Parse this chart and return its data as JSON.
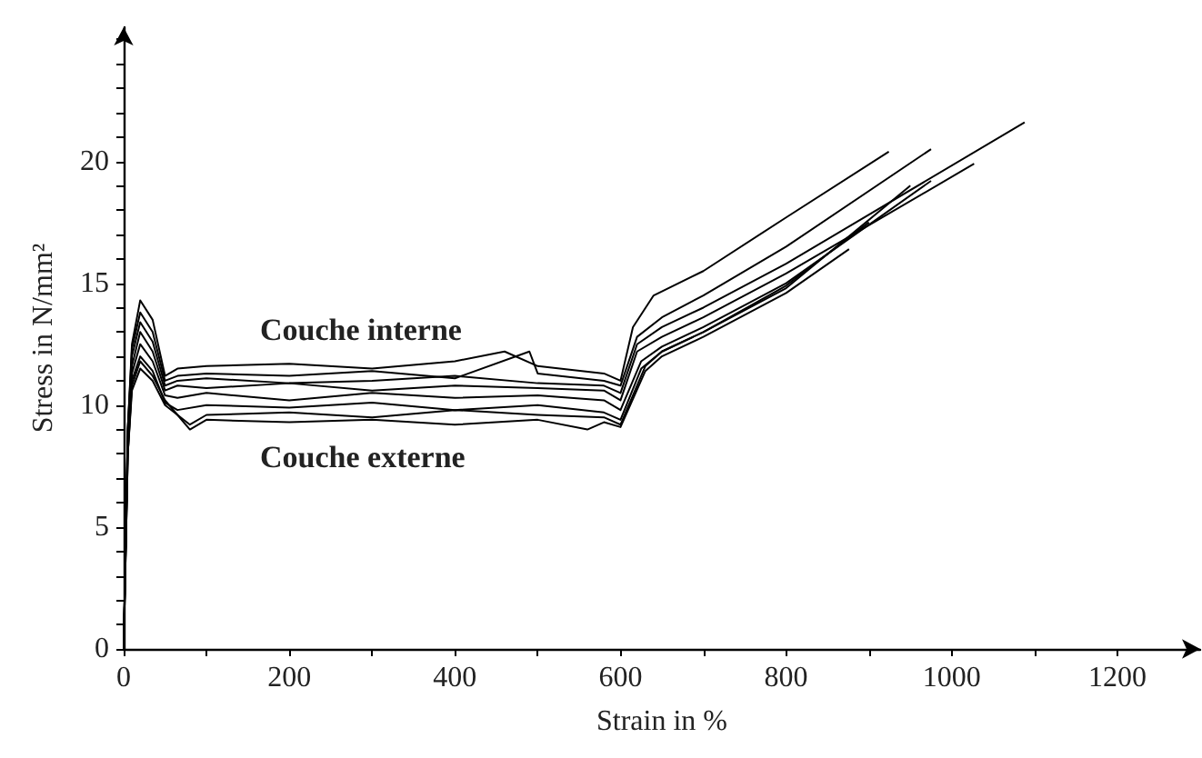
{
  "chart_data": {
    "type": "line",
    "xlabel": "Strain in %",
    "ylabel": "Stress in N/mm²",
    "marker": "none",
    "line_style": "solid",
    "grid": false,
    "xlim": [
      0,
      1300
    ],
    "ylim": [
      0,
      25.5
    ],
    "xticks": [
      0,
      {
        "value": 100,
        "label": null
      },
      200,
      {
        "value": 300,
        "label": null
      },
      400,
      {
        "value": 500,
        "label": null
      },
      600,
      {
        "value": 700,
        "label": null
      },
      800,
      {
        "value": 900,
        "label": null
      },
      1000,
      {
        "value": 1100,
        "label": null
      },
      1200
    ],
    "yticks": [
      0,
      {
        "value": 1,
        "label": null
      },
      {
        "value": 2,
        "label": null
      },
      {
        "value": 3,
        "label": null
      },
      {
        "value": 4,
        "label": null
      },
      5,
      {
        "value": 6,
        "label": null
      },
      {
        "value": 7,
        "label": null
      },
      {
        "value": 8,
        "label": null
      },
      {
        "value": 9,
        "label": null
      },
      10,
      {
        "value": 11,
        "label": null
      },
      {
        "value": 12,
        "label": null
      },
      {
        "value": 13,
        "label": null
      },
      {
        "value": 14,
        "label": null
      },
      15,
      {
        "value": 16,
        "label": null
      },
      {
        "value": 17,
        "label": null
      },
      {
        "value": 18,
        "label": null
      },
      {
        "value": 19,
        "label": null
      },
      20,
      {
        "value": 21,
        "label": null
      },
      {
        "value": 22,
        "label": null
      },
      {
        "value": 23,
        "label": null
      },
      {
        "value": 24,
        "label": null
      },
      {
        "value": 25,
        "label": null
      }
    ],
    "annotations": [
      "Couche interne",
      "Couche externe"
    ],
    "series": [
      {
        "color": "#000000",
        "x": [
          0,
          5,
          10,
          20,
          35,
          50,
          65,
          100,
          200,
          300,
          400,
          460,
          500,
          580,
          600,
          615,
          640,
          700,
          800,
          924
        ],
        "values": [
          0,
          9,
          12.5,
          14.3,
          13.5,
          11.2,
          11.5,
          11.6,
          11.7,
          11.5,
          11.8,
          12.2,
          11.6,
          11.3,
          11.0,
          13.2,
          14.5,
          15.5,
          17.7,
          20.4
        ]
      },
      {
        "color": "#000000",
        "x": [
          0,
          5,
          10,
          20,
          35,
          50,
          65,
          100,
          200,
          300,
          400,
          490,
          500,
          580,
          600,
          620,
          650,
          700,
          800,
          975
        ],
        "values": [
          0,
          9,
          12.3,
          13.8,
          13.0,
          11.0,
          11.2,
          11.3,
          11.2,
          11.4,
          11.1,
          12.2,
          11.3,
          11.0,
          10.8,
          12.8,
          13.6,
          14.5,
          16.5,
          20.5
        ]
      },
      {
        "color": "#000000",
        "x": [
          0,
          5,
          10,
          20,
          35,
          50,
          65,
          100,
          200,
          300,
          400,
          500,
          580,
          600,
          620,
          650,
          700,
          800,
          1088
        ],
        "values": [
          0,
          9,
          12,
          13.4,
          12.6,
          10.8,
          11.0,
          11.1,
          10.9,
          11.0,
          11.2,
          10.9,
          10.8,
          10.5,
          12.5,
          13.2,
          14.0,
          15.8,
          21.6
        ]
      },
      {
        "color": "#000000",
        "x": [
          0,
          5,
          10,
          20,
          35,
          50,
          65,
          100,
          200,
          300,
          400,
          500,
          580,
          600,
          620,
          650,
          700,
          800,
          1027
        ],
        "values": [
          0,
          8.5,
          11.6,
          13.0,
          12.2,
          10.6,
          10.8,
          10.7,
          10.9,
          10.6,
          10.8,
          10.7,
          10.6,
          10.2,
          12.2,
          12.8,
          13.6,
          15.4,
          19.9
        ]
      },
      {
        "color": "#000000",
        "x": [
          0,
          5,
          10,
          20,
          35,
          50,
          65,
          100,
          200,
          300,
          400,
          500,
          580,
          600,
          625,
          650,
          700,
          800,
          975
        ],
        "values": [
          0,
          8.5,
          11.3,
          12.5,
          11.8,
          10.4,
          10.3,
          10.5,
          10.2,
          10.5,
          10.3,
          10.4,
          10.2,
          9.8,
          11.8,
          12.4,
          13.2,
          15.0,
          19.2
        ]
      },
      {
        "color": "#000000",
        "x": [
          0,
          5,
          10,
          20,
          35,
          50,
          65,
          100,
          200,
          300,
          400,
          500,
          580,
          600,
          625,
          650,
          700,
          800,
          950
        ],
        "values": [
          0,
          8,
          11,
          12.0,
          11.4,
          10.1,
          9.8,
          10.0,
          9.9,
          10.1,
          9.8,
          10.0,
          9.7,
          9.4,
          11.5,
          12.2,
          13.0,
          14.8,
          19.0
        ]
      },
      {
        "color": "#000000",
        "x": [
          0,
          5,
          10,
          20,
          35,
          50,
          65,
          80,
          100,
          200,
          300,
          400,
          500,
          560,
          580,
          600,
          630,
          650,
          700,
          800,
          876
        ],
        "values": [
          0,
          8,
          10.6,
          11.5,
          11.0,
          10.0,
          9.6,
          9.0,
          9.4,
          9.3,
          9.4,
          9.2,
          9.4,
          9.0,
          9.3,
          9.1,
          11.4,
          12.0,
          12.8,
          14.6,
          16.4
        ]
      },
      {
        "color": "#000000",
        "x": [
          0,
          5,
          10,
          20,
          35,
          50,
          65,
          80,
          100,
          200,
          300,
          400,
          500,
          580,
          600,
          630,
          650,
          700,
          800,
          900
        ],
        "values": [
          0,
          8,
          10.8,
          11.8,
          11.2,
          10.2,
          9.6,
          9.2,
          9.6,
          9.7,
          9.5,
          9.8,
          9.6,
          9.5,
          9.2,
          11.6,
          12.2,
          13.0,
          14.9,
          17.5
        ]
      }
    ]
  }
}
